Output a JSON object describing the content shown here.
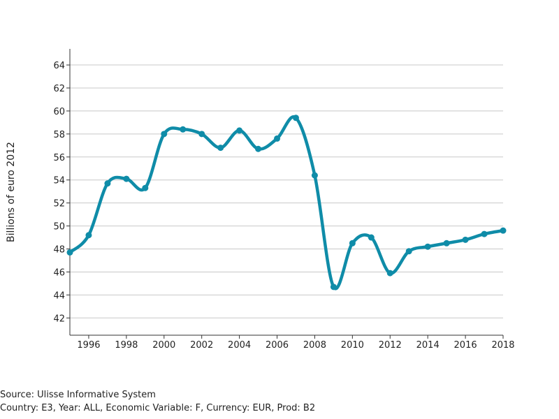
{
  "chart_data": {
    "type": "line",
    "title": "",
    "xlabel": "",
    "ylabel": "Billions of euro 2012",
    "x": [
      1995,
      1996,
      1997,
      1998,
      1999,
      2000,
      2001,
      2002,
      2003,
      2004,
      2005,
      2006,
      2007,
      2008,
      2009,
      2010,
      2011,
      2012,
      2013,
      2014,
      2015,
      2016,
      2017,
      2018
    ],
    "series": [
      {
        "values": [
          47.7,
          49.2,
          53.7,
          54.1,
          53.3,
          58.0,
          58.4,
          58.0,
          56.8,
          58.3,
          56.7,
          57.6,
          59.4,
          54.4,
          44.7,
          48.5,
          49.0,
          45.9,
          47.8,
          48.2,
          48.5,
          48.8,
          49.3,
          49.6
        ],
        "color": "#0f8ca8"
      }
    ],
    "xlim": [
      1995,
      2018
    ],
    "ylim": [
      40.5,
      65.4
    ],
    "x_ticks": [
      "1996",
      "1998",
      "2000",
      "2002",
      "2004",
      "2006",
      "2008",
      "2010",
      "2012",
      "2014",
      "2016",
      "2018"
    ],
    "y_ticks": [
      "42",
      "44",
      "46",
      "48",
      "50",
      "52",
      "54",
      "56",
      "58",
      "60",
      "62",
      "64"
    ],
    "grid": "horizontal",
    "gridColor": "#c8c8c8",
    "axisColor": "#333333"
  },
  "footer": {
    "source": "Source: Ulisse Informative System",
    "meta": "Country: E3, Year: ALL, Economic Variable: F, Currency: EUR, Prod: B2"
  }
}
